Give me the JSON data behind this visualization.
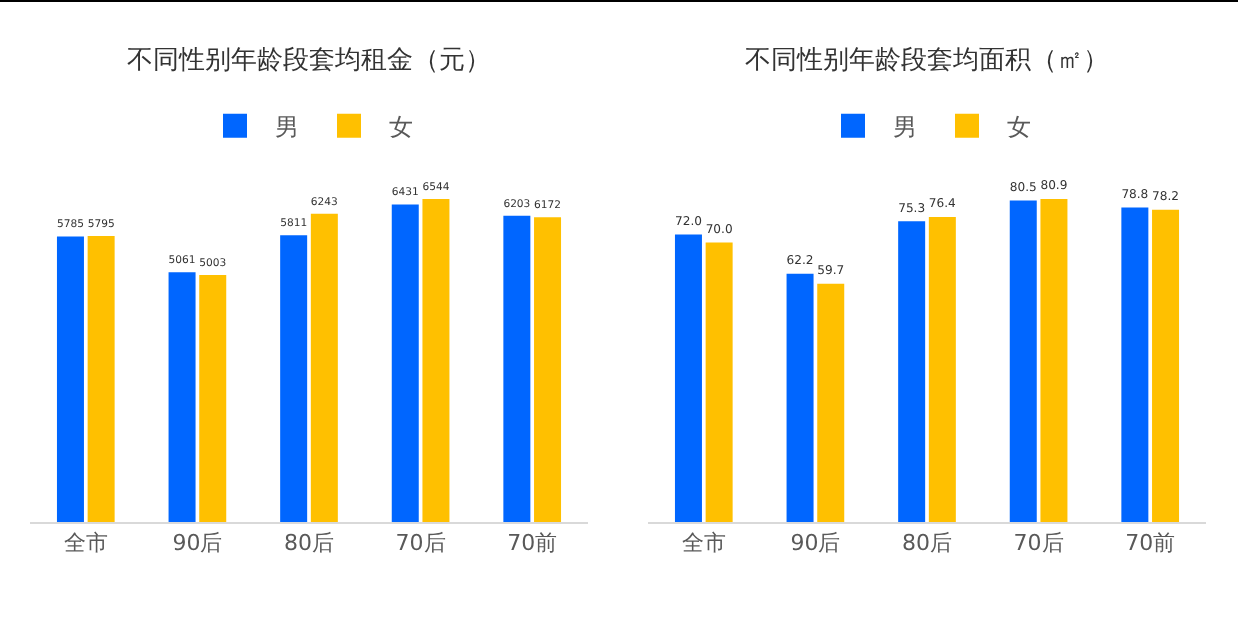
{
  "chart_data": [
    {
      "type": "bar",
      "title": "不同性别年龄段套均租金（元）",
      "categories": [
        "全市",
        "90后",
        "80后",
        "70后",
        "70前"
      ],
      "series": [
        {
          "name": "男",
          "color": "#0066ff",
          "values": [
            5785,
            5061,
            5811,
            6431,
            6203
          ]
        },
        {
          "name": "女",
          "color": "#ffc000",
          "values": [
            5795,
            5003,
            6243,
            6544,
            6172
          ]
        }
      ],
      "data_labels": true,
      "legend": "top",
      "grid": false,
      "tick_labels": "x"
    },
    {
      "type": "bar",
      "title": "不同性别年龄段套均面积（㎡）",
      "categories": [
        "全市",
        "90后",
        "80后",
        "70后",
        "70前"
      ],
      "series": [
        {
          "name": "男",
          "color": "#0066ff",
          "values": [
            72.0,
            62.2,
            75.3,
            80.5,
            78.8
          ],
          "value_labels": [
            "72.0",
            "62.2",
            "75.3",
            "80.5",
            "78.8"
          ]
        },
        {
          "name": "女",
          "color": "#ffc000",
          "values": [
            70.0,
            59.7,
            76.4,
            80.9,
            78.2
          ],
          "value_labels": [
            "70.0",
            "59.7",
            "76.4",
            "80.9",
            "78.2"
          ]
        }
      ],
      "legend": "top",
      "grid": false,
      "tick_labels": "x"
    }
  ]
}
